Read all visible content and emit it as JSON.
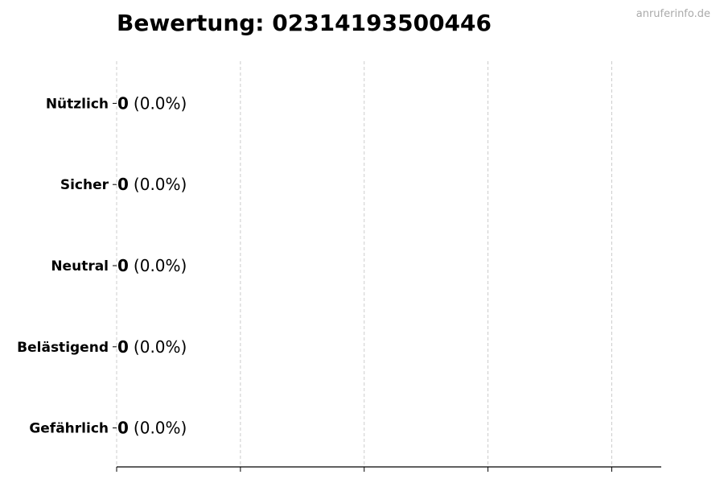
{
  "title": "Bewertung: 02314193500446",
  "watermark": "anruferinfo.de",
  "chart_data": {
    "type": "bar",
    "orientation": "horizontal",
    "title": "Bewertung: 02314193500446",
    "categories": [
      "Nützlich",
      "Sicher",
      "Neutral",
      "Belästigend",
      "Gefährlich"
    ],
    "values": [
      0,
      0,
      0,
      0,
      0
    ],
    "data_labels": [
      {
        "count": "0",
        "percent": "(0.0%)"
      },
      {
        "count": "0",
        "percent": "(0.0%)"
      },
      {
        "count": "0",
        "percent": "(0.0%)"
      },
      {
        "count": "0",
        "percent": "(0.0%)"
      },
      {
        "count": "0",
        "percent": "(0.0%)"
      }
    ],
    "xlim": [
      0,
      4.4
    ],
    "xticks": [
      0,
      1,
      2,
      3,
      4
    ],
    "xtick_labels_shown": false,
    "grid": "x, dashed",
    "bar_color": "#000000",
    "grid_color": "#cccccc"
  }
}
